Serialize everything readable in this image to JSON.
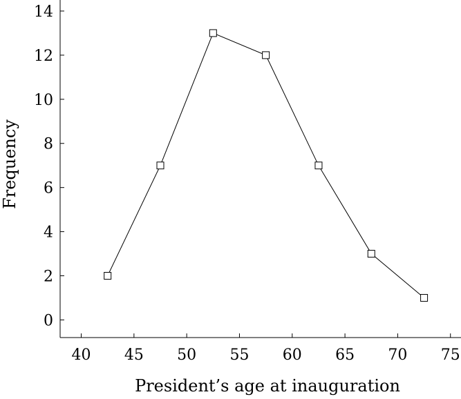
{
  "chart_data": {
    "type": "line",
    "title": "",
    "xlabel": "President’s age at inauguration",
    "ylabel": "Frequency",
    "xlim": [
      38,
      76
    ],
    "ylim": [
      -0.8,
      14.5
    ],
    "xticks": [
      40,
      45,
      50,
      55,
      60,
      65,
      70,
      75
    ],
    "yticks": [
      0,
      2,
      4,
      6,
      8,
      10,
      12,
      14
    ],
    "grid": false,
    "legend": "none",
    "series": [
      {
        "marker": "square",
        "color": "#000000",
        "x": [
          42.5,
          47.5,
          52.5,
          57.5,
          62.5,
          67.5,
          72.5
        ],
        "y": [
          2,
          7,
          13,
          12,
          7,
          3,
          1
        ]
      }
    ]
  }
}
